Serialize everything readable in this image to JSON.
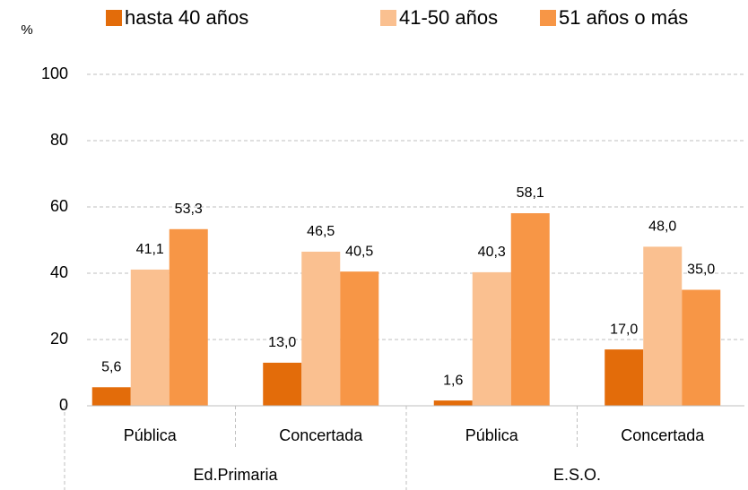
{
  "chart_data": {
    "type": "bar",
    "y_label": "%",
    "categories": [
      "Pública",
      "Concertada",
      "Pública",
      "Concertada"
    ],
    "groups": [
      "Ed.Primaria",
      "E.S.O."
    ],
    "series": [
      {
        "name": "hasta 40 años",
        "color": "#e36c0a",
        "values": [
          5.6,
          13.0,
          1.6,
          17.0
        ],
        "value_labels": [
          "5,6",
          "13,0",
          "1,6",
          "17,0"
        ]
      },
      {
        "name": "41-50 años",
        "color": "#fac090",
        "values": [
          41.1,
          46.5,
          40.3,
          48.0
        ],
        "value_labels": [
          "41,1",
          "46,5",
          "40,3",
          "48,0"
        ]
      },
      {
        "name": "51 años o más",
        "color": "#f79646",
        "values": [
          53.3,
          40.5,
          58.1,
          35.0
        ],
        "value_labels": [
          "53,3",
          "40,5",
          "58,1",
          "35,0"
        ]
      }
    ],
    "ylim": [
      0,
      100
    ],
    "yticks": [
      0,
      20,
      40,
      60,
      80,
      100
    ],
    "grid": true,
    "legend": "top"
  }
}
